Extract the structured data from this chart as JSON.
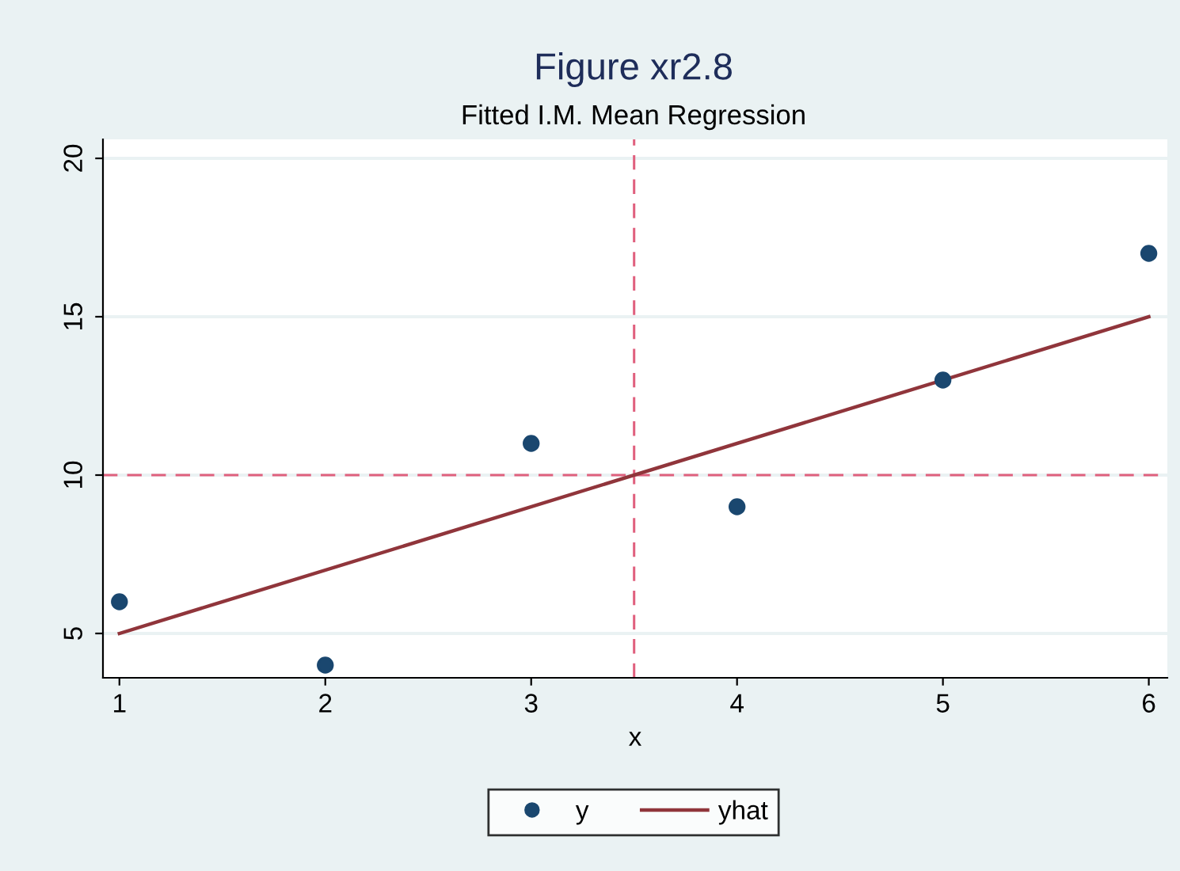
{
  "chart_data": {
    "type": "scatter",
    "title": "Figure xr2.8",
    "subtitle": "Fitted I.M. Mean Regression",
    "xlabel": "x",
    "x": [
      1,
      2,
      3,
      4,
      5,
      6
    ],
    "series": [
      {
        "name": "y",
        "color": "#1a476f",
        "values": [
          6,
          4,
          11,
          9,
          13,
          17
        ],
        "marker": "circle"
      },
      {
        "name": "yhat",
        "type": "line",
        "color": "#90353b",
        "x": [
          1,
          6
        ],
        "values": [
          5,
          15
        ],
        "marker": "none",
        "line_style": "solid"
      }
    ],
    "xlim": [
      0.92,
      6.09
    ],
    "ylim": [
      3.6,
      20.6
    ],
    "xticks": [
      1,
      2,
      3,
      4,
      5,
      6
    ],
    "yticks": [
      5,
      10,
      15,
      20
    ],
    "ref_lines": [
      {
        "axis": "x",
        "value": 3.5,
        "color": "#e0607e",
        "line_style": "dashed"
      },
      {
        "axis": "y",
        "value": 10,
        "color": "#e0607e",
        "line_style": "dashed"
      }
    ],
    "grid": "y",
    "legend": "bottom"
  }
}
